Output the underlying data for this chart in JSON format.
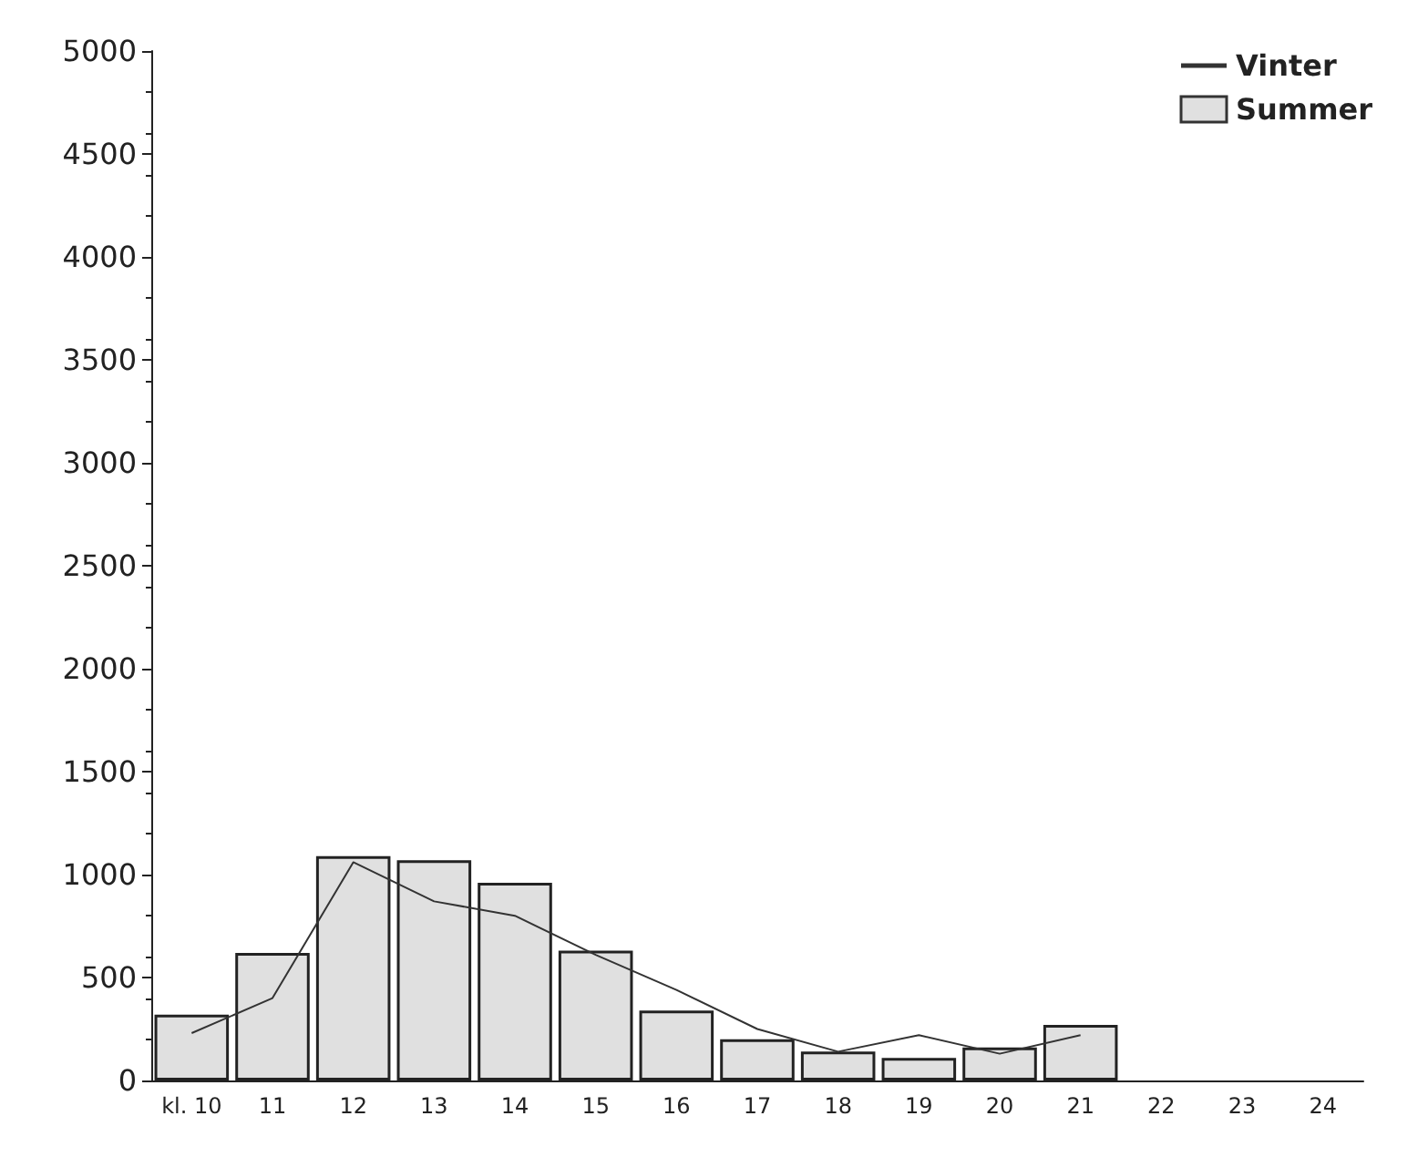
{
  "chart_data": {
    "type": "bar",
    "categories": [
      "kl. 10",
      "11",
      "12",
      "13",
      "14",
      "15",
      "16",
      "17",
      "18",
      "19",
      "20",
      "21",
      "22",
      "23",
      "24"
    ],
    "series": [
      {
        "name": "Vinter",
        "type": "line",
        "color": "#333333",
        "values": [
          230,
          400,
          1060,
          870,
          800,
          610,
          440,
          250,
          140,
          220,
          130,
          220,
          null,
          null,
          null
        ]
      },
      {
        "name": "Summer",
        "color": "#e0e0e0",
        "values": [
          320,
          620,
          1090,
          1070,
          960,
          630,
          340,
          200,
          140,
          110,
          160,
          270,
          null,
          null,
          null
        ]
      }
    ],
    "ylim": [
      0,
      5000
    ],
    "yticks": [
      0,
      500,
      1000,
      1500,
      2000,
      2500,
      3000,
      3500,
      4000,
      4500,
      5000
    ],
    "grid": false,
    "legend": "top right",
    "marker": "none"
  }
}
